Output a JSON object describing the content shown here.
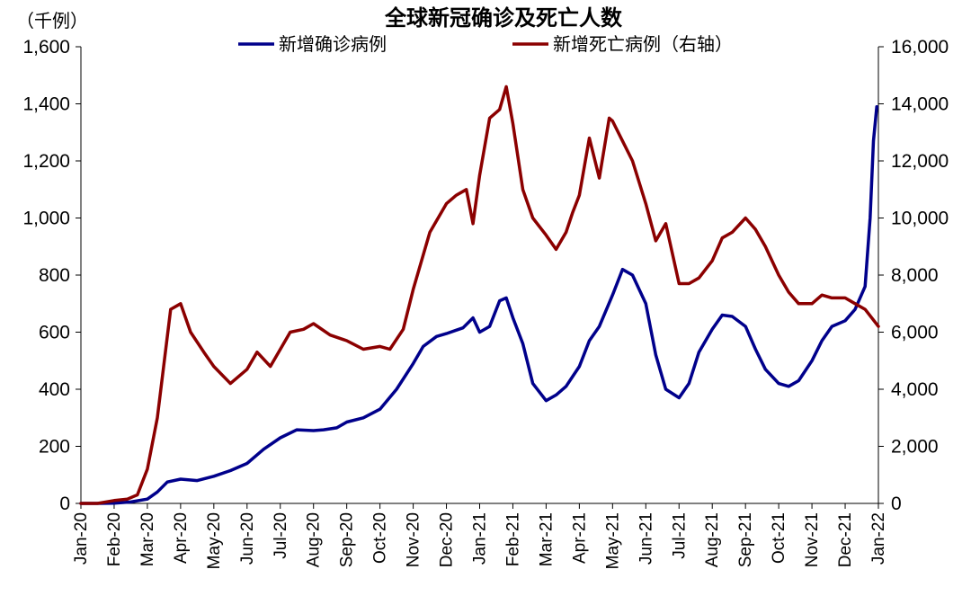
{
  "chart_data": {
    "type": "line",
    "title": "全球新冠确诊及死亡人数",
    "y_left_unit": "（千例）",
    "y_left_lim": [
      0,
      1600
    ],
    "y_left_ticks": [
      "0",
      "200",
      "400",
      "600",
      "800",
      "1,000",
      "1,200",
      "1,400",
      "1,600"
    ],
    "y_right_lim": [
      0,
      16000
    ],
    "y_right_ticks": [
      "0",
      "2,000",
      "4,000",
      "6,000",
      "8,000",
      "10,000",
      "12,000",
      "14,000",
      "16,000"
    ],
    "x_ticks": [
      "Jan-20",
      "Feb-20",
      "Mar-20",
      "Apr-20",
      "May-20",
      "Jun-20",
      "Jul-20",
      "Aug-20",
      "Sep-20",
      "Oct-20",
      "Nov-20",
      "Dec-20",
      "Jan-21",
      "Feb-21",
      "Mar-21",
      "Apr-21",
      "May-21",
      "Jun-21",
      "Jul-21",
      "Aug-21",
      "Sep-21",
      "Oct-21",
      "Nov-21",
      "Dec-21",
      "Jan-22"
    ],
    "grid": false,
    "legend_position": "top",
    "series": [
      {
        "name": "新增确诊病例",
        "axis": "left",
        "color": "#00008B",
        "x": [
          0,
          0.5,
          1,
          1.5,
          2,
          2.3,
          2.6,
          3,
          3.5,
          4,
          4.5,
          5,
          5.5,
          6,
          6.5,
          7,
          7.3,
          7.7,
          8,
          8.5,
          9,
          9.5,
          10,
          10.3,
          10.7,
          11,
          11.5,
          11.8,
          12,
          12.3,
          12.6,
          12.8,
          13,
          13.3,
          13.6,
          14,
          14.3,
          14.6,
          15,
          15.3,
          15.6,
          16,
          16.3,
          16.6,
          17,
          17.3,
          17.6,
          18,
          18.3,
          18.6,
          19,
          19.3,
          19.6,
          20,
          20.3,
          20.6,
          21,
          21.3,
          21.6,
          22,
          22.3,
          22.6,
          23,
          23.3,
          23.6,
          23.75,
          23.85,
          23.95
        ],
        "values": [
          0,
          0,
          1,
          5,
          15,
          40,
          75,
          85,
          80,
          95,
          115,
          140,
          190,
          230,
          258,
          255,
          258,
          265,
          285,
          300,
          330,
          400,
          490,
          550,
          585,
          595,
          615,
          650,
          600,
          620,
          710,
          720,
          650,
          560,
          420,
          360,
          380,
          410,
          480,
          570,
          620,
          730,
          820,
          800,
          700,
          520,
          400,
          370,
          420,
          530,
          610,
          660,
          655,
          620,
          540,
          470,
          420,
          410,
          430,
          500,
          570,
          620,
          640,
          680,
          760,
          1000,
          1270,
          1390
        ]
      },
      {
        "name": "新增死亡病例（右轴）",
        "axis": "right",
        "color": "#8B0000",
        "x": [
          0,
          0.5,
          1,
          1.4,
          1.7,
          2,
          2.3,
          2.7,
          3,
          3.3,
          3.7,
          4,
          4.5,
          5,
          5.3,
          5.7,
          6,
          6.3,
          6.7,
          7,
          7.5,
          8,
          8.5,
          9,
          9.3,
          9.7,
          10,
          10.5,
          11,
          11.3,
          11.6,
          11.8,
          12,
          12.3,
          12.6,
          12.8,
          13,
          13.3,
          13.6,
          14,
          14.3,
          14.6,
          14.8,
          15,
          15.3,
          15.6,
          15.9,
          16,
          16.3,
          16.6,
          17,
          17.3,
          17.6,
          18,
          18.3,
          18.6,
          19,
          19.3,
          19.6,
          20,
          20.3,
          20.6,
          21,
          21.3,
          21.6,
          22,
          22.3,
          22.6,
          23,
          23.3,
          23.6,
          23.8,
          24
        ],
        "values": [
          0,
          0,
          100,
          150,
          300,
          1200,
          3000,
          6800,
          7000,
          6000,
          5300,
          4800,
          4200,
          4700,
          5300,
          4800,
          5400,
          6000,
          6100,
          6300,
          5900,
          5700,
          5400,
          5500,
          5400,
          6100,
          7500,
          9500,
          10500,
          10800,
          11000,
          9800,
          11500,
          13500,
          13800,
          14600,
          13300,
          11000,
          10000,
          9400,
          8900,
          9500,
          10200,
          10800,
          12800,
          11400,
          13500,
          13400,
          12700,
          12000,
          10500,
          9200,
          9800,
          7700,
          7700,
          7900,
          8500,
          9300,
          9500,
          10000,
          9600,
          9000,
          8000,
          7400,
          7000,
          7000,
          7300,
          7200,
          7200,
          7000,
          6800,
          6500,
          6200
        ]
      }
    ]
  }
}
